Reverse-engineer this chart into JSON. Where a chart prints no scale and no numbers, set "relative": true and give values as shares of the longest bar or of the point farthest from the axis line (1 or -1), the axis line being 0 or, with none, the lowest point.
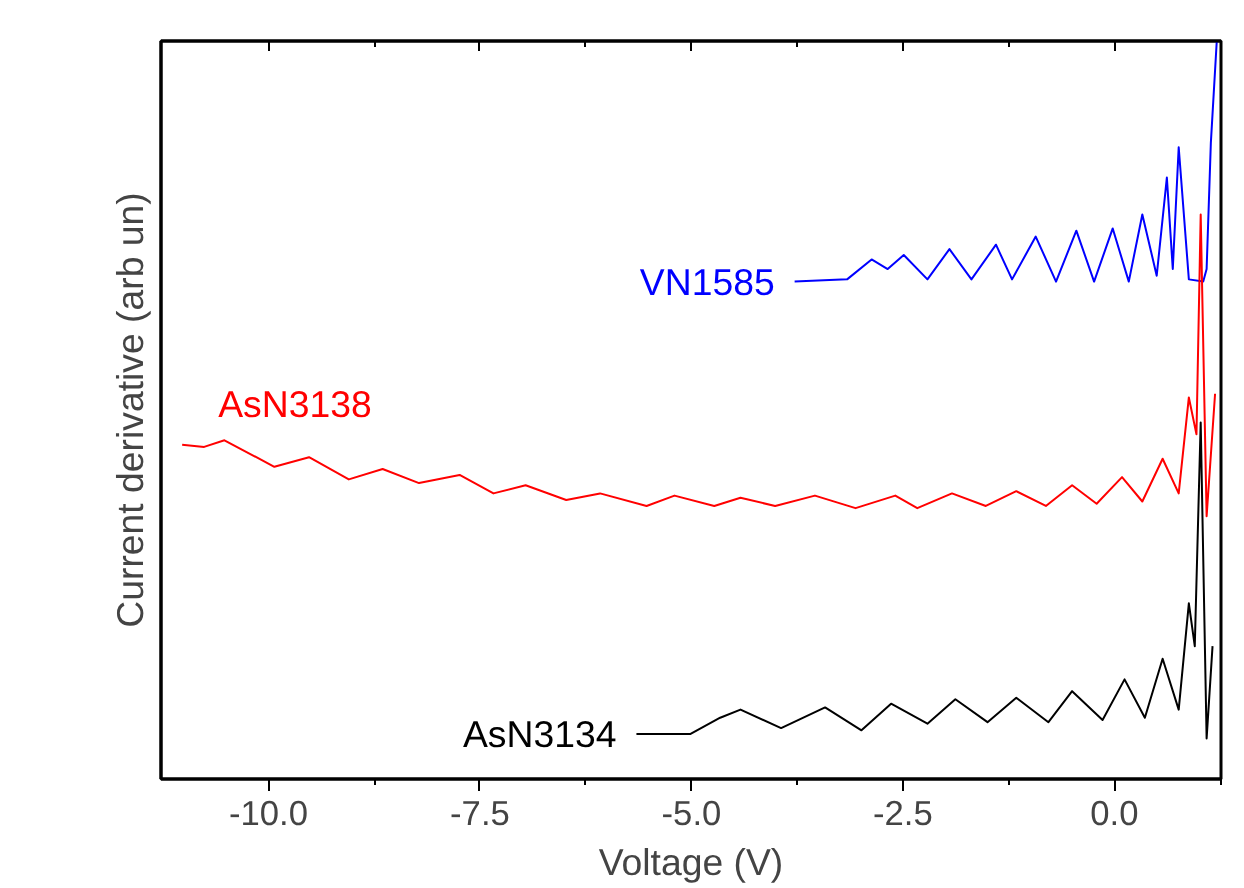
{
  "chart_data": {
    "type": "line",
    "xlabel": "Voltage (V)",
    "ylabel": "Current derivative (arb un)",
    "relative": true,
    "xlim": [
      -11.27,
      1.26
    ],
    "xticks": [
      {
        "value": -10,
        "label": "-10.0"
      },
      {
        "value": -7.5,
        "label": "-7.5"
      },
      {
        "value": -5,
        "label": "-5.0"
      },
      {
        "value": -2.5,
        "label": "-2.5"
      },
      {
        "value": 0,
        "label": "0.0"
      }
    ],
    "grid": false,
    "line_style": "solid",
    "series": [
      {
        "name": "VN1585",
        "color": "#0000ff",
        "x": [
          -3.78,
          -3.16,
          -2.87,
          -2.68,
          -2.49,
          -2.21,
          -1.95,
          -1.69,
          -1.4,
          -1.21,
          -0.93,
          -0.69,
          -0.45,
          -0.24,
          -0.02,
          0.17,
          0.33,
          0.5,
          0.62,
          0.69,
          0.76,
          0.88,
          1.05,
          1.09,
          1.14,
          1.21
        ],
        "values": [
          0.674,
          0.677,
          0.704,
          0.691,
          0.71,
          0.677,
          0.718,
          0.677,
          0.724,
          0.677,
          0.735,
          0.674,
          0.743,
          0.674,
          0.746,
          0.674,
          0.765,
          0.682,
          0.815,
          0.691,
          0.856,
          0.677,
          0.674,
          0.691,
          0.862,
          1.0
        ]
      },
      {
        "name": "AsN3138",
        "color": "#ff0000",
        "x": [
          -11.02,
          -10.76,
          -10.52,
          -9.93,
          -9.52,
          -9.05,
          -8.65,
          -8.22,
          -7.74,
          -7.34,
          -6.96,
          -6.48,
          -6.08,
          -5.53,
          -5.2,
          -4.73,
          -4.42,
          -4.01,
          -3.54,
          -3.06,
          -2.59,
          -2.33,
          -1.92,
          -1.52,
          -1.16,
          -0.81,
          -0.5,
          -0.21,
          0.09,
          0.33,
          0.57,
          0.76,
          0.88,
          0.97,
          1.02,
          1.09,
          1.19
        ],
        "values": [
          0.453,
          0.45,
          0.459,
          0.423,
          0.436,
          0.406,
          0.42,
          0.401,
          0.412,
          0.387,
          0.398,
          0.378,
          0.387,
          0.37,
          0.384,
          0.37,
          0.381,
          0.37,
          0.384,
          0.367,
          0.384,
          0.367,
          0.387,
          0.37,
          0.39,
          0.37,
          0.398,
          0.373,
          0.409,
          0.376,
          0.434,
          0.387,
          0.517,
          0.467,
          0.765,
          0.356,
          0.522
        ]
      },
      {
        "name": "AsN3134",
        "color": "#000000",
        "x": [
          -5.65,
          -5.01,
          -4.66,
          -4.42,
          -3.94,
          -3.42,
          -2.99,
          -2.64,
          -2.21,
          -1.88,
          -1.5,
          -1.16,
          -0.78,
          -0.5,
          -0.14,
          0.12,
          0.36,
          0.57,
          0.76,
          0.88,
          0.95,
          1.02,
          1.09,
          1.16
        ],
        "values": [
          0.061,
          0.061,
          0.083,
          0.094,
          0.069,
          0.097,
          0.066,
          0.102,
          0.075,
          0.108,
          0.077,
          0.11,
          0.077,
          0.119,
          0.08,
          0.135,
          0.083,
          0.163,
          0.094,
          0.238,
          0.18,
          0.483,
          0.055,
          0.18
        ]
      }
    ]
  }
}
